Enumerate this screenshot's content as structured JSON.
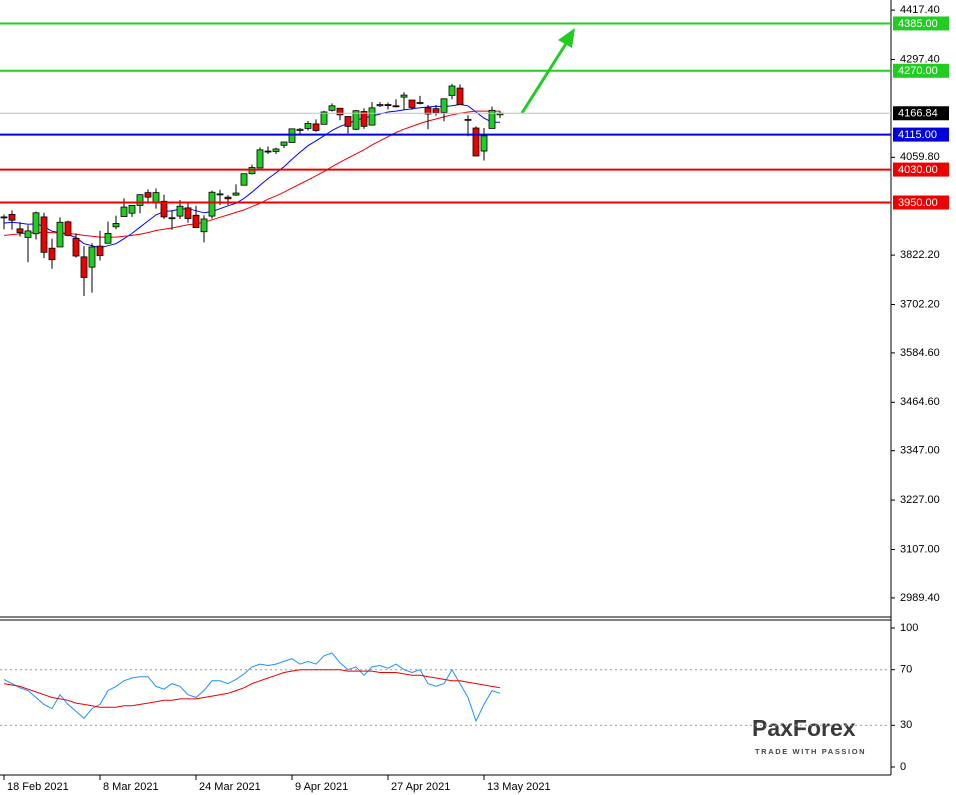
{
  "chart_data": [
    {
      "type": "candlestick",
      "open": [
        3915,
        3921,
        3886,
        3865,
        3874,
        3915,
        3839,
        3842,
        3903,
        3863,
        3818,
        3793,
        3844,
        3851,
        3891,
        3916,
        3924,
        3943,
        3974,
        3949,
        3953,
        3913,
        3917,
        3937,
        3919,
        3879,
        3917,
        3969,
        3963,
        3968,
        3992,
        4020,
        4034,
        4075,
        4074,
        4089,
        4096,
        4125,
        4130,
        4141,
        4140,
        4174,
        4179,
        4159,
        4128,
        4171,
        4138,
        4185,
        4188,
        4185,
        4206,
        4199,
        4192,
        4180,
        4178,
        4169,
        4210,
        4228,
        4152,
        4131,
        4075,
        4130,
        4163
      ],
      "high": [
        3921,
        3931,
        3902,
        3895,
        3928,
        3925,
        3862,
        3914,
        3906,
        3875,
        3844,
        3851,
        3881,
        3904,
        3918,
        3960,
        3944,
        3970,
        3982,
        3984,
        3969,
        3931,
        3956,
        3949,
        3942,
        3919,
        3979,
        3981,
        3968,
        3994,
        4020,
        4042,
        4084,
        4086,
        4083,
        4098,
        4129,
        4131,
        4148,
        4152,
        4173,
        4191,
        4180,
        4159,
        4175,
        4179,
        4194,
        4194,
        4193,
        4201,
        4218,
        4199,
        4209,
        4187,
        4187,
        4202,
        4238,
        4237,
        4162,
        4135,
        4131,
        4183,
        4172
      ],
      "low": [
        3885,
        3884,
        3867,
        3805,
        3860,
        3815,
        3789,
        3842,
        3868,
        3816,
        3723,
        3731,
        3809,
        3851,
        3885,
        3916,
        3915,
        3924,
        3949,
        3935,
        3910,
        3884,
        3910,
        3901,
        3889,
        3853,
        3911,
        3944,
        3944,
        3966,
        3992,
        4018,
        4034,
        4068,
        4068,
        4082,
        4096,
        4116,
        4125,
        4122,
        4140,
        4171,
        4150,
        4118,
        4126,
        4129,
        4138,
        4182,
        4176,
        4181,
        4176,
        4175,
        4188,
        4128,
        4161,
        4147,
        4201,
        4188,
        4111,
        4062,
        4052,
        4130,
        4155
      ],
      "close": [
        3914,
        3907,
        3877,
        3881,
        3925,
        3829,
        3811,
        3902,
        3870,
        3820,
        3768,
        3842,
        3821,
        3875,
        3899,
        3939,
        3943,
        3969,
        3963,
        3974,
        3915,
        3913,
        3941,
        3911,
        3889,
        3910,
        3975,
        3971,
        3959,
        3973,
        4020,
        4035,
        4078,
        4074,
        4080,
        4097,
        4129,
        4128,
        4142,
        4125,
        4170,
        4185,
        4163,
        4135,
        4173,
        4135,
        4180,
        4188,
        4187,
        4183,
        4211,
        4181,
        4193,
        4165,
        4168,
        4202,
        4233,
        4188,
        4152,
        4063,
        4112,
        4174,
        4167
      ],
      "up_color": "#22cc22",
      "down_color": "#ee0000",
      "overlays": [
        {
          "color": "#0000ff",
          "values": [
            3900,
            3902,
            3900,
            3897,
            3898,
            3892,
            3880,
            3877,
            3872,
            3865,
            3850,
            3845,
            3840,
            3845,
            3850,
            3862,
            3875,
            3890,
            3905,
            3920,
            3928,
            3930,
            3934,
            3935,
            3930,
            3925,
            3928,
            3935,
            3942,
            3948,
            3960,
            3975,
            3992,
            4008,
            4022,
            4037,
            4055,
            4072,
            4088,
            4100,
            4112,
            4125,
            4135,
            4142,
            4150,
            4155,
            4160,
            4165,
            4170,
            4172,
            4175,
            4178,
            4180,
            4182,
            4184,
            4183,
            4185,
            4188,
            4185,
            4170,
            4155,
            4145,
            4145
          ]
        },
        {
          "color": "#ee0000",
          "values": [
            3870,
            3872,
            3874,
            3876,
            3877,
            3878,
            3877,
            3876,
            3875,
            3873,
            3870,
            3868,
            3866,
            3866,
            3866,
            3868,
            3870,
            3873,
            3877,
            3882,
            3885,
            3888,
            3892,
            3896,
            3898,
            3902,
            3908,
            3914,
            3920,
            3926,
            3932,
            3940,
            3948,
            3958,
            3966,
            3975,
            3985,
            3995,
            4005,
            4015,
            4025,
            4037,
            4048,
            4058,
            4068,
            4078,
            4090,
            4100,
            4110,
            4120,
            4128,
            4135,
            4142,
            4148,
            4153,
            4158,
            4163,
            4167,
            4170,
            4172,
            4172,
            4172,
            4172
          ]
        }
      ],
      "levels": [
        {
          "value": 4385,
          "label": "4385.00",
          "color": "#22cc22"
        },
        {
          "value": 4270,
          "label": "4270.00",
          "color": "#22cc22"
        },
        {
          "value": 4115,
          "label": "4115.00",
          "color": "#0000dd"
        },
        {
          "value": 4030,
          "label": "4030.00",
          "color": "#ee0000"
        },
        {
          "value": 3950,
          "label": "3950.00",
          "color": "#ee0000"
        }
      ],
      "current_price": 4166.84,
      "xlim": [
        -0.5,
        110.875
      ],
      "ylim": [
        2943,
        4442
      ],
      "xticks": [
        {
          "value": 0,
          "label": "18 Feb 2021"
        },
        {
          "value": 12,
          "label": "8 Mar 2021"
        },
        {
          "value": 24,
          "label": "24 Mar 2021"
        },
        {
          "value": 36,
          "label": "9 Apr 2021"
        },
        {
          "value": 48,
          "label": "27 Apr 2021"
        },
        {
          "value": 60,
          "label": "13 May 2021"
        }
      ],
      "yticks": [
        {
          "value": 4417.4,
          "label": "4417.40"
        },
        {
          "value": 4297.4,
          "label": "4297.40"
        },
        {
          "value": 4059.8,
          "label": "4059.80"
        },
        {
          "value": 3822.2,
          "label": "3822.20"
        },
        {
          "value": 3702.2,
          "label": "3702.20"
        },
        {
          "value": 3584.6,
          "label": "3584.60"
        },
        {
          "value": 3464.6,
          "label": "3464.60"
        },
        {
          "value": 3347,
          "label": "3347.00"
        },
        {
          "value": 3227,
          "label": "3227.00"
        },
        {
          "value": 3107,
          "label": "3107.00"
        },
        {
          "value": 2989.4,
          "label": "2989.40"
        }
      ]
    },
    {
      "type": "line",
      "series": [
        {
          "color": "#1e90ff",
          "values": [
            63,
            60,
            57,
            55,
            50,
            45,
            42,
            52,
            45,
            40,
            35,
            42,
            45,
            55,
            58,
            62,
            64,
            65,
            65,
            58,
            56,
            60,
            58,
            52,
            50,
            55,
            62,
            62,
            60,
            63,
            67,
            72,
            74,
            73,
            74,
            76,
            78,
            74,
            76,
            74,
            80,
            82,
            75,
            70,
            72,
            66,
            72,
            73,
            71,
            74,
            70,
            68,
            70,
            60,
            58,
            60,
            70,
            60,
            50,
            33,
            45,
            55,
            53
          ]
        },
        {
          "color": "#ee0000",
          "values": [
            60,
            59,
            58,
            56,
            54,
            52,
            50,
            49,
            48,
            46,
            45,
            44,
            43,
            43,
            43,
            44,
            44,
            45,
            46,
            47,
            48,
            48,
            49,
            49,
            49,
            50,
            51,
            52,
            53,
            55,
            57,
            60,
            62,
            64,
            66,
            68,
            69,
            70,
            70,
            70,
            70,
            70,
            70,
            69,
            69,
            69,
            69,
            68,
            68,
            68,
            67,
            66,
            66,
            65,
            64,
            63,
            62,
            62,
            61,
            60,
            59,
            58,
            57
          ]
        }
      ],
      "levels": [
        70,
        30
      ],
      "xlim": [
        -0.5,
        110.875
      ],
      "ylim": [
        -5.76,
        105.76
      ],
      "yticks": [
        100,
        70,
        30,
        0
      ]
    }
  ],
  "logo": {
    "text": "PaxForex",
    "tagline": "TRADE WITH PASSION"
  }
}
